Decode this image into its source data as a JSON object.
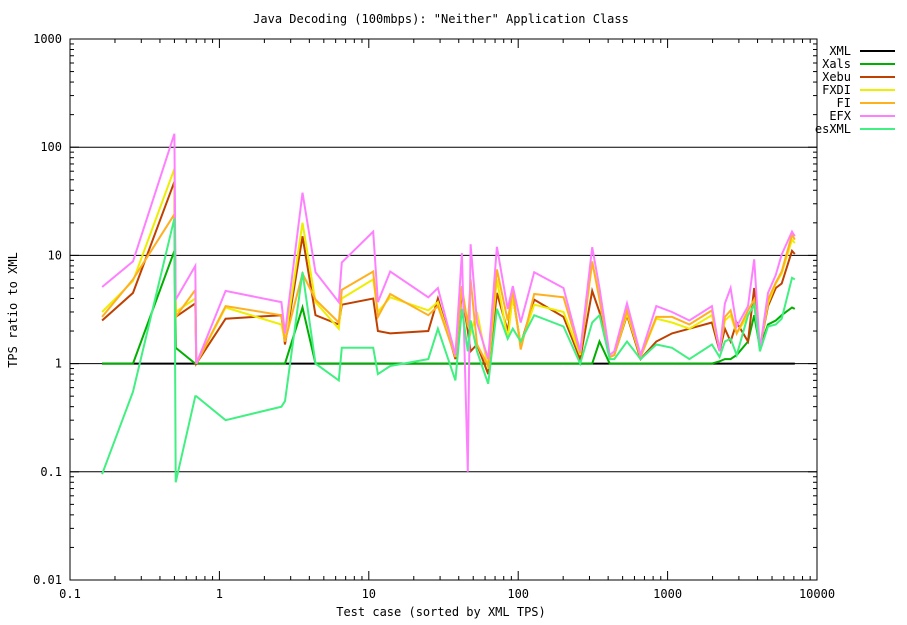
{
  "chart_data": {
    "type": "line",
    "title": "Java Decoding (100mbps): \"Neither\" Application Class",
    "xlabel": "Test case (sorted by XML TPS)",
    "ylabel": "TPS ratio to XML",
    "xscale": "log",
    "yscale": "log",
    "xlim": [
      0.1,
      10000
    ],
    "ylim": [
      0.01,
      1000
    ],
    "xticks": [
      "0.1",
      "1",
      "10",
      "100",
      "1000",
      "10000"
    ],
    "yticks": [
      "0.01",
      "0.1",
      "1",
      "10",
      "100",
      "1000"
    ],
    "grid": "horizontal lines at 0.1, 1, 10, 100",
    "legend": "top-right",
    "x": [
      0.164,
      0.264,
      0.5,
      0.51,
      0.69,
      0.7,
      1.1,
      2.6,
      2.75,
      3.6,
      4.4,
      6.3,
      6.6,
      10.7,
      11.5,
      13.9,
      25,
      29,
      38,
      42,
      46,
      48,
      53,
      63,
      72,
      85,
      92,
      104,
      128,
      201,
      260,
      313,
      350,
      410,
      440,
      535,
      660,
      840,
      1070,
      1400,
      1980,
      2230,
      2420,
      2640,
      2900,
      3450,
      3800,
      4150,
      4700,
      5300,
      5800,
      6800,
      7100
    ],
    "series": [
      {
        "name": "XML",
        "color": "#000000",
        "values": [
          1,
          1,
          1,
          1,
          1,
          1,
          1,
          1,
          1,
          1,
          1,
          1,
          1,
          1,
          1,
          1,
          1,
          1,
          1,
          1,
          1,
          1,
          1,
          1,
          1,
          1,
          1,
          1,
          1,
          1,
          1,
          1,
          1,
          1,
          1,
          1,
          1,
          1,
          1,
          1,
          1,
          1,
          1,
          1,
          1,
          1,
          1,
          1,
          1,
          1,
          1,
          1,
          1
        ]
      },
      {
        "name": "Xals",
        "color": "#00b000",
        "values": [
          1,
          1,
          11,
          1.4,
          1,
          1,
          1,
          1,
          1,
          3.3,
          1,
          1,
          1,
          1,
          1,
          1,
          1,
          1,
          1,
          1,
          1,
          1,
          1,
          1,
          1,
          1,
          1,
          1,
          1,
          1,
          1,
          1,
          1.6,
          1,
          1,
          1,
          1,
          1,
          1,
          1,
          1,
          1.05,
          1.1,
          1.1,
          1.2,
          1.6,
          2.8,
          1.4,
          2.3,
          2.5,
          2.8,
          3.3,
          3.2
        ]
      },
      {
        "name": "Xebu",
        "color": "#c04000",
        "values": [
          2.5,
          4.5,
          48,
          2.7,
          3.6,
          1,
          2.6,
          2.8,
          1.5,
          15,
          2.8,
          2.3,
          3.5,
          4,
          2.0,
          1.9,
          2,
          4,
          1.1,
          4.5,
          2,
          1.3,
          1.5,
          0.8,
          4.5,
          2,
          4.2,
          1.5,
          3.9,
          2.7,
          1.1,
          4.7,
          3,
          1.15,
          1.2,
          2.8,
          1.1,
          1.6,
          1.9,
          2.1,
          2.4,
          1.3,
          2.1,
          1.6,
          2.4,
          1.6,
          5,
          1.4,
          3.4,
          5,
          5.5,
          11,
          10.3
        ]
      },
      {
        "name": "FXDI",
        "color": "#eeee00",
        "values": [
          3,
          5.8,
          63,
          3.0,
          4,
          1,
          3.3,
          2.3,
          1.6,
          20,
          3.7,
          2.1,
          4,
          6,
          3,
          4.1,
          3.1,
          3.7,
          1.15,
          5,
          2.3,
          1.9,
          3,
          0.9,
          6,
          1.7,
          4.2,
          1.5,
          3.5,
          3,
          1.2,
          8.5,
          4.4,
          1.15,
          1.2,
          2.9,
          1.15,
          2.6,
          2.4,
          2.1,
          2.8,
          1.35,
          2.5,
          2.8,
          1.9,
          2.8,
          3.5,
          1.4,
          3.6,
          5.5,
          6.8,
          14,
          13
        ]
      },
      {
        "name": "FI",
        "color": "#ffb020",
        "values": [
          2.7,
          6,
          24,
          2.7,
          4.8,
          1,
          3.4,
          2.8,
          1.6,
          6.8,
          3.9,
          2.4,
          4.8,
          7.1,
          2.7,
          4.4,
          2.8,
          3.4,
          1.15,
          5.2,
          2.2,
          6,
          1.5,
          0.95,
          7.4,
          2.5,
          4.8,
          1.35,
          4.4,
          4.1,
          1.25,
          8.8,
          3.9,
          1.15,
          1.2,
          3.1,
          1.15,
          2.7,
          2.7,
          2.3,
          3.1,
          1.35,
          2.7,
          3.1,
          1.9,
          3.1,
          3.9,
          1.4,
          3.9,
          5.6,
          7.1,
          15.5,
          14
        ]
      },
      {
        "name": "EFX",
        "color": "#ff80ff",
        "values": [
          5.1,
          8.8,
          133,
          3.9,
          8,
          1,
          4.7,
          3.7,
          1.9,
          38,
          7,
          3.7,
          8.6,
          16.6,
          3.7,
          7.1,
          4.1,
          5,
          1.2,
          10.5,
          0.1,
          12.7,
          2.4,
          1.1,
          12,
          3.2,
          5.2,
          2.4,
          7,
          5,
          1.3,
          11.9,
          5,
          1.2,
          1.3,
          3.6,
          1.2,
          3.4,
          3.0,
          2.5,
          3.4,
          1.3,
          3.6,
          5,
          2.2,
          3.4,
          9.2,
          1.35,
          4.5,
          6.6,
          10.2,
          16.6,
          15
        ]
      },
      {
        "name": "esXML",
        "color": "#40f080",
        "values": [
          0.095,
          0.55,
          22,
          0.08,
          0.5,
          0.5,
          0.3,
          0.4,
          0.45,
          7,
          1,
          0.7,
          1.4,
          1.4,
          0.8,
          0.95,
          1.1,
          2.1,
          0.7,
          3.2,
          1.3,
          2.5,
          1.3,
          0.65,
          3.2,
          1.7,
          2.1,
          1.6,
          2.8,
          2.2,
          1,
          2.4,
          2.8,
          1.1,
          1.1,
          1.6,
          1.1,
          1.5,
          1.4,
          1.1,
          1.5,
          1.15,
          1.6,
          1.7,
          1.2,
          2.8,
          3.5,
          1.3,
          2.2,
          2.3,
          2.6,
          6.2,
          6
        ]
      }
    ]
  }
}
